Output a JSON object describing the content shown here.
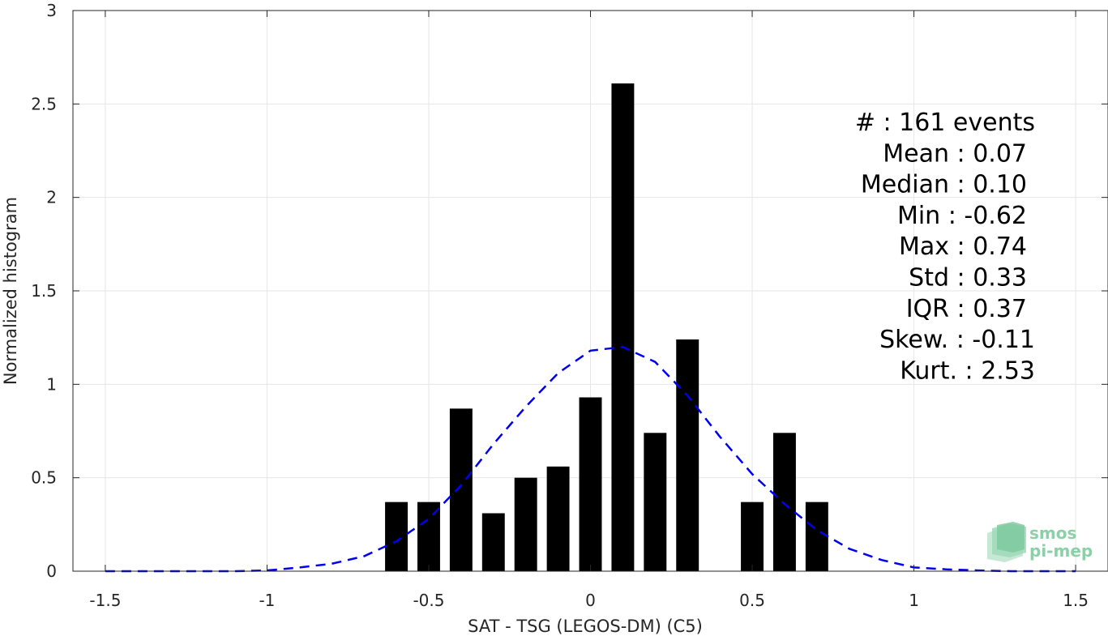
{
  "chart_data": {
    "type": "bar",
    "xlabel": "SAT - TSG (LEGOS-DM) (C5)",
    "ylabel": "Normalized histogram",
    "xlim": [
      -1.6,
      1.6
    ],
    "ylim": [
      0,
      3
    ],
    "xticks": [
      "-1.5",
      "-1",
      "-0.5",
      "0",
      "0.5",
      "1",
      "1.5"
    ],
    "yticks": [
      "0",
      "0.5",
      "1",
      "1.5",
      "2",
      "2.5",
      "3"
    ],
    "grid": true,
    "bar_width": 0.07,
    "bar_color": "#000000",
    "bars": [
      {
        "x": -0.6,
        "y": 0.37
      },
      {
        "x": -0.5,
        "y": 0.37
      },
      {
        "x": -0.4,
        "y": 0.87
      },
      {
        "x": -0.3,
        "y": 0.31
      },
      {
        "x": -0.2,
        "y": 0.5
      },
      {
        "x": -0.1,
        "y": 0.56
      },
      {
        "x": 0.0,
        "y": 0.93
      },
      {
        "x": 0.1,
        "y": 2.61
      },
      {
        "x": 0.2,
        "y": 0.74
      },
      {
        "x": 0.3,
        "y": 1.24
      },
      {
        "x": 0.5,
        "y": 0.37
      },
      {
        "x": 0.6,
        "y": 0.74
      },
      {
        "x": 0.7,
        "y": 0.37
      }
    ],
    "fit_curve": {
      "color": "#0000ee",
      "style": "dashed",
      "x": [
        -1.5,
        -1.4,
        -1.3,
        -1.2,
        -1.1,
        -1.0,
        -0.9,
        -0.8,
        -0.7,
        -0.6,
        -0.5,
        -0.4,
        -0.3,
        -0.2,
        -0.1,
        0.0,
        0.1,
        0.2,
        0.3,
        0.4,
        0.5,
        0.6,
        0.7,
        0.8,
        0.9,
        1.0,
        1.1,
        1.2,
        1.3,
        1.4,
        1.5
      ],
      "y": [
        0.0,
        0.0,
        0.0,
        0.0,
        0.0,
        0.004,
        0.02,
        0.04,
        0.08,
        0.16,
        0.28,
        0.46,
        0.68,
        0.88,
        1.06,
        1.18,
        1.2,
        1.12,
        0.94,
        0.72,
        0.52,
        0.36,
        0.22,
        0.12,
        0.06,
        0.02,
        0.01,
        0.004,
        0.0,
        0.0,
        0.0
      ]
    },
    "stats": [
      "#  : 161 events",
      "Mean : 0.07",
      "Median : 0.10",
      "Min : -0.62",
      "Max : 0.74",
      "Std : 0.33",
      "IQR : 0.37",
      "Skew. : -0.11",
      "Kurt. : 2.53"
    ]
  },
  "logo": {
    "line1": "smos",
    "line2": "pi-mep",
    "color": "#8ccfa8"
  }
}
